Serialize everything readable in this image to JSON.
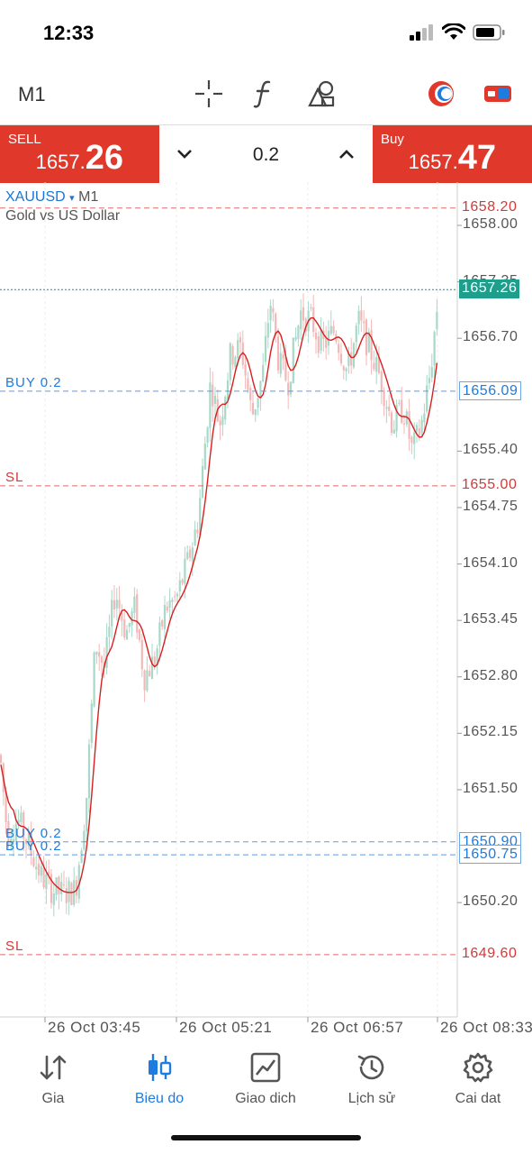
{
  "status": {
    "time": "12:33",
    "icons": [
      "signal-icon",
      "wifi-icon",
      "battery-icon"
    ]
  },
  "toolbar": {
    "timeframe": "M1",
    "tools": [
      "crosshair-icon",
      "indicators-icon",
      "objects-icon"
    ],
    "right_icons": [
      "one-click-trading-icon",
      "trade-toggle-icon"
    ]
  },
  "trade": {
    "sell_label": "SELL",
    "sell_price_main": "1657.",
    "sell_price_big": "26",
    "buy_label": "Buy",
    "buy_price_main": "1657.",
    "buy_price_big": "47",
    "volume": "0.2"
  },
  "chart": {
    "symbol": "XAUUSD",
    "symbol_timeframe": "M1",
    "description": "Gold vs US Dollar",
    "price_ticks": [
      "1658.00",
      "1657.35",
      "1656.70",
      "1655.40",
      "1654.75",
      "1654.10",
      "1653.45",
      "1652.80",
      "1652.15",
      "1651.50",
      "1650.20"
    ],
    "time_ticks": [
      "26 Oct 03:45",
      "26 Oct 05:21",
      "26 Oct 06:57",
      "26 Oct 08:33"
    ],
    "current_price": "1657.26",
    "levels": [
      {
        "label": "SL",
        "price": "1658.20",
        "kind": "sl",
        "show_label": false
      },
      {
        "label": "BUY 0.2",
        "price": "1656.09",
        "kind": "buy",
        "show_label": true
      },
      {
        "label": "SL",
        "price": "1655.00",
        "kind": "sl",
        "show_label": true
      },
      {
        "label": "BUY 0.2",
        "price": "1650.90",
        "kind": "buy",
        "show_label": true
      },
      {
        "label": "BUY 0.2",
        "price": "1650.75",
        "kind": "buy",
        "show_label": true
      },
      {
        "label": "SL",
        "price": "1649.60",
        "kind": "sl",
        "show_label": true
      }
    ],
    "colors": {
      "bull": "#a8d8c8",
      "bear": "#f2b8b8",
      "ma": "#d61f1f",
      "buy_line": "#5b9be6",
      "sl_line": "#e06a6a",
      "current_line": "#1e8c9e"
    }
  },
  "nav": {
    "items": [
      {
        "label": "Gia",
        "icon": "quotes-icon"
      },
      {
        "label": "Bieu do",
        "icon": "chart-icon"
      },
      {
        "label": "Giao dich",
        "icon": "trade-icon"
      },
      {
        "label": "Lịch sử",
        "icon": "history-icon"
      },
      {
        "label": "Cai dat",
        "icon": "settings-icon"
      }
    ],
    "active": "Bieu do"
  }
}
